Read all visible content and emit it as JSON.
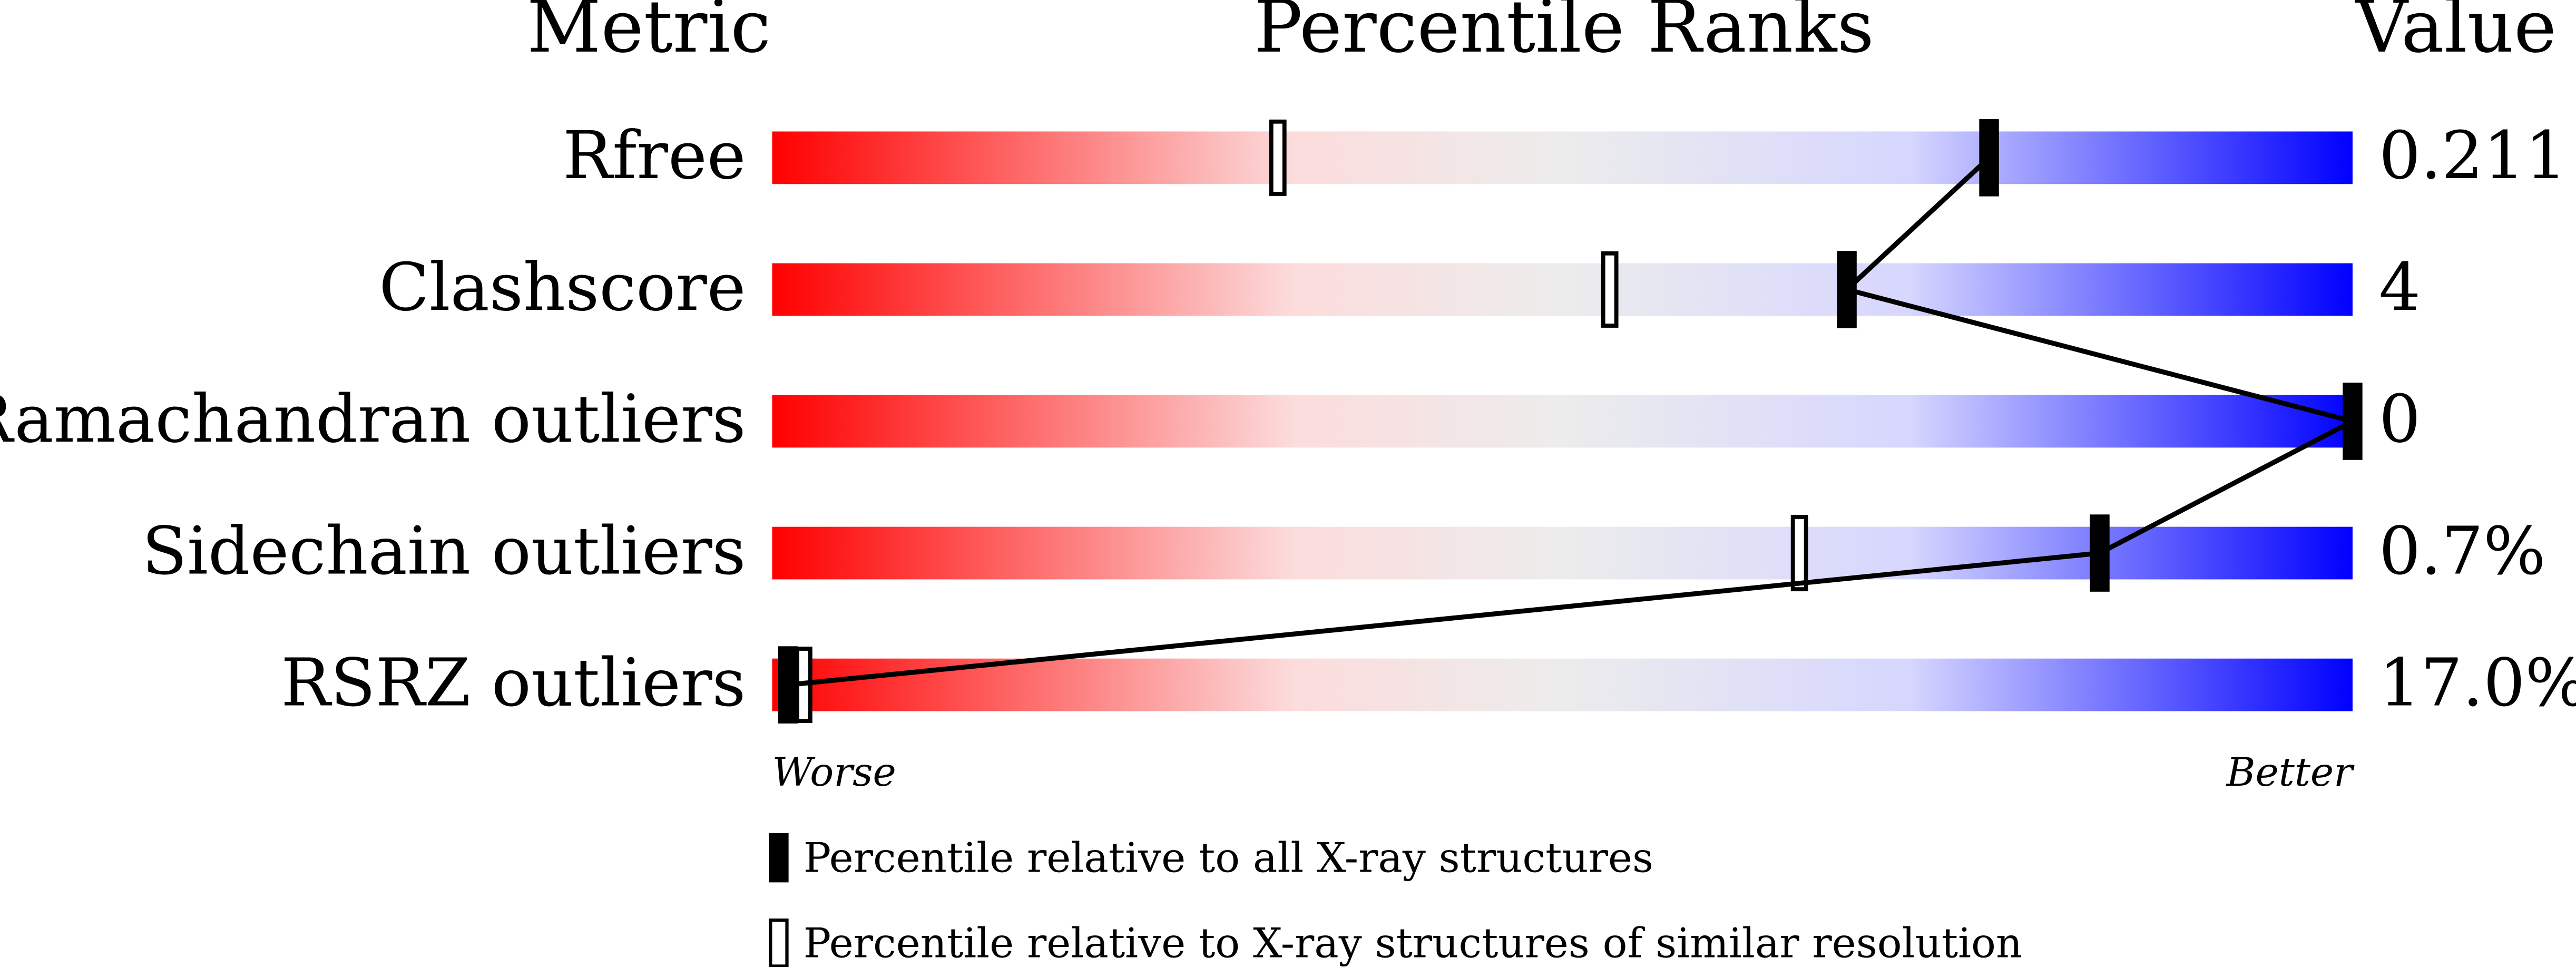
{
  "chart_data": {
    "type": "percentile-slider",
    "headers": [
      "Metric",
      "Percentile Ranks",
      "Value"
    ],
    "categories": [
      "Rfree",
      "Clashscore",
      "Ramachandran outliers",
      "Sidechain outliers",
      "RSRZ outliers"
    ],
    "value_labels": [
      "0.211",
      "4",
      "0",
      "0.7%",
      "17.0%"
    ],
    "xlim": [
      0,
      100
    ],
    "scale_labels": [
      "Worse",
      "Better"
    ],
    "series": [
      {
        "name": "Percentile relative to all X-ray structures",
        "color": "#000000",
        "values": [
          77,
          68,
          100,
          84,
          1
        ]
      },
      {
        "name": "Percentile relative to X-ray structures of similar resolution",
        "color": "#ffffff",
        "values": [
          32,
          53,
          100,
          65,
          2
        ]
      }
    ]
  }
}
